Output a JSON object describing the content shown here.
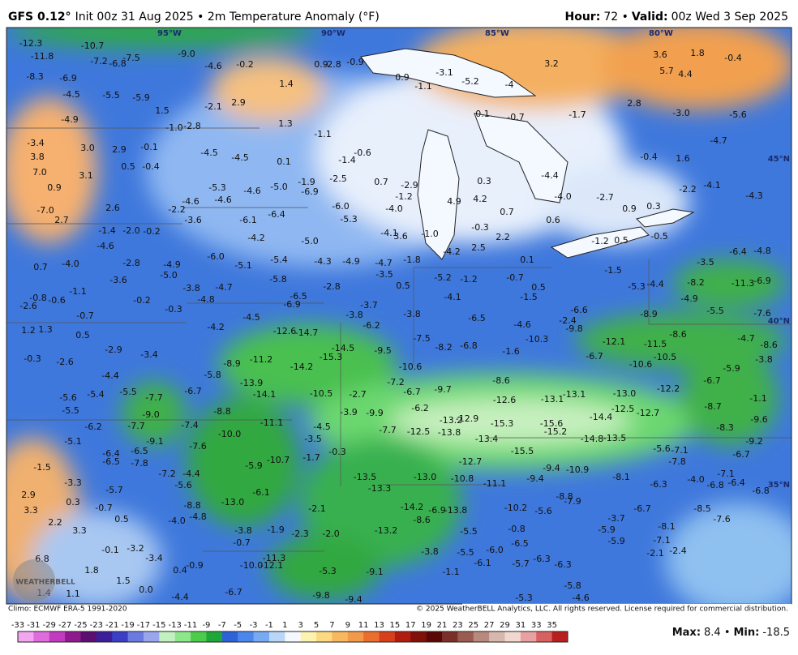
{
  "header": {
    "model": "GFS 0.12°",
    "description": "Init 00z 31 Aug 2025 • 2m Temperature Anomaly (°F)",
    "hour_label": "Hour:",
    "hour_value": "72 •",
    "valid_label": "Valid:",
    "valid_value": "00z Wed 3 Sep 2025"
  },
  "coordinate_labels": [
    "95°W",
    "90°W",
    "85°W",
    "80°W",
    "45°N",
    "40°N",
    "35°N"
  ],
  "map_labels": [
    "-12.3",
    "-11.8",
    "-10.7",
    "-7.2",
    "-6.8",
    "-7.5",
    "-9.0",
    "-8.3",
    "-6.9",
    "-4.5",
    "-5.5",
    "-5.9",
    "-4.9",
    "1.5",
    "-1.0",
    "-2.8",
    "-2.1",
    "-4.6",
    "-0.2",
    "2.9",
    "1.4",
    "1.3",
    "0.9",
    "-2.8",
    "-0.9",
    "0.9",
    "-1.1",
    "-3.1",
    "-5.2",
    "-4",
    "0.1",
    "-0.7",
    "-1.7",
    "3.2",
    "3.6",
    "1.8",
    "-0.4",
    "5.7",
    "4.4",
    "2.8",
    "-3.0",
    "-5.6",
    "-4.7",
    "1.6",
    "-0.4",
    "-3.4",
    "3.0",
    "2.9",
    "-0.1",
    "3.8",
    "7.0",
    "3.1",
    "0.5",
    "-0.4",
    "0.9",
    "-4.5",
    "-4.5",
    "0.1",
    "-1.1",
    "-1.4",
    "-0.6",
    "-5.3",
    "-4.6",
    "-4.6",
    "-5.0",
    "-1.9",
    "-6.9",
    "-2.5",
    "0.7",
    "-2.9",
    "0.3",
    "-4.4",
    "-4.0",
    "-2.7",
    "0.9",
    "0.3",
    "-2.2",
    "-4.1",
    "-4.3",
    "-7.0",
    "2.7",
    "2.6",
    "-2.2",
    "-4.6",
    "-3.6",
    "-6.1",
    "-6.4",
    "-6.0",
    "-5.3",
    "-4.0",
    "-1.2",
    "4.9",
    "4.2",
    "-0.3",
    "0.7",
    "0.6",
    "-1.0",
    "-4.1",
    "3.6",
    "-4.2",
    "2.5",
    "2.2",
    "0.1",
    "0.5",
    "-0.5",
    "-1.2",
    "-1.4",
    "-2.0",
    "-0.2",
    "-4.6",
    "-4.2",
    "-5.0",
    "0.7",
    "-4.0",
    "-2.8",
    "-4.9",
    "-5.0",
    "-6.0",
    "-5.1",
    "-5.4",
    "-5.8",
    "-4.3",
    "-4.9",
    "-4.7",
    "-3.5",
    "-1.8",
    "-5.2",
    "-1.2",
    "-0.7",
    "0.5",
    "-1.5",
    "-5.3",
    "-4.4",
    "-8.2",
    "-3.5",
    "-6.4",
    "-4.8",
    "-11.3",
    "-6.9",
    "-1.1",
    "-0.8",
    "-0.6",
    "-2.6",
    "-3.6",
    "-3.8",
    "-4.7",
    "-0.2",
    "-4.8",
    "-6.9",
    "-6.5",
    "-2.8",
    "0.5",
    "-4.1",
    "-1.5",
    "-6.6",
    "-4.9",
    "-5.5",
    "-7.6",
    "-0.7",
    "-0.3",
    "-4.5",
    "-3.8",
    "-3.7",
    "-3.8",
    "-6.5",
    "-2.4",
    "-9.8",
    "-4.6",
    "-8.9",
    "-8.6",
    "-4.7",
    "-8.6",
    "1.2",
    "1.3",
    "0.5",
    "-4.2",
    "-12.6",
    "-14.7",
    "-14.5",
    "-15.3",
    "-6.2",
    "-9.5",
    "-7.5",
    "-8.2",
    "-6.8",
    "-1.6",
    "-10.3",
    "-12.1",
    "-11.5",
    "-6.7",
    "-10.6",
    "-10.5",
    "-5.9",
    "-3.8",
    "-0.3",
    "-2.6",
    "-2.9",
    "-3.4",
    "-8.9",
    "-11.2",
    "-14.2",
    "-5.8",
    "-13.9",
    "-14.1",
    "-10.5",
    "-2.7",
    "-10.6",
    "-7.2",
    "-6.7",
    "-9.7",
    "-8.6",
    "-12.6",
    "-13.1",
    "-13.1",
    "-13.0",
    "-14.4",
    "-12.5",
    "-12.7",
    "-12.2",
    "-6.7",
    "-8.7",
    "-1.1",
    "-9.6",
    "-8.3",
    "-4.4",
    "-5.5",
    "-5.4",
    "-5.6",
    "-5.5",
    "-7.7",
    "-9.0",
    "-6.7",
    "-8.8",
    "-11.1",
    "-4.5",
    "-3.9",
    "-9.9",
    "-7.7",
    "-6.2",
    "-12.5",
    "-13.8",
    "-13.2",
    "-12.9",
    "-15.3",
    "-13.4",
    "-15.6",
    "-15.2",
    "-14.8",
    "-13.5",
    "-5.6",
    "-7.1",
    "-7.8",
    "-6.7",
    "-9.2",
    "-7.1",
    "-6.4",
    "-6.8",
    "-6.8",
    "-4.0",
    "-5.1",
    "-6.2",
    "-7.7",
    "-9.1",
    "-7.4",
    "-7.6",
    "-10.0",
    "-3.5",
    "-0.3",
    "-1.7",
    "-10.7",
    "-5.9",
    "-6.4",
    "-6.5",
    "-6.5",
    "-7.8",
    "-1.5",
    "-7.2",
    "-4.4",
    "-5.6",
    "-3.3",
    "-5.7",
    "2.9",
    "0.3",
    "-0.7",
    "3.3",
    "2.2",
    "0.5",
    "3.3",
    "-4.0",
    "-4.8",
    "-8.8",
    "-13.0",
    "-6.1",
    "-13.5",
    "-13.3",
    "-13.0",
    "-10.8",
    "-12.7",
    "-15.5",
    "-11.1",
    "-9.4",
    "-9.4",
    "-10.9",
    "-8.1",
    "-6.3",
    "-8.8",
    "-7.9",
    "-5.6",
    "-10.2",
    "-6.7",
    "-8.5",
    "-7.6",
    "-8.1",
    "-3.7",
    "-5.9",
    "-5.9",
    "-7.1",
    "-2.1",
    "-2.4",
    "-2.1",
    "-1.9",
    "-3.8",
    "-0.7",
    "-2.3",
    "-2.0",
    "-13.2",
    "-14.2",
    "-6.9",
    "-13.8",
    "-8.6",
    "-5.5",
    "-0.8",
    "-6.5",
    "-0.1",
    "-3.2",
    "-3.4",
    "6.8",
    "1.8",
    "-0.9",
    "0.4",
    "-11.3",
    "-12.1",
    "-10.0",
    "-5.3",
    "-9.1",
    "-3.8",
    "-5.5",
    "-6.0",
    "-6.1",
    "-1.1",
    "-5.7",
    "-6.3",
    "-6.3",
    "1.5",
    "1.4",
    "1.1",
    "0.0",
    "-4.4",
    "-6.7",
    "-9.8",
    "-9.4",
    "-5.3",
    "-5.8",
    "-4.6"
  ],
  "footer": {
    "climo": "Climo: ECMWF ERA-5 1991-2020",
    "copyright": "© 2025 WeatherBELL Analytics, LLC. All rights reserved. License required for commercial distribution.",
    "logo": "WEATHERBELL",
    "max_label": "Max:",
    "max_value": "8.4 •",
    "min_label": "Min:",
    "min_value": "-18.5"
  },
  "colorbar": {
    "ticks": [
      -33,
      -31,
      -29,
      -27,
      -25,
      -23,
      -21,
      -19,
      -17,
      -15,
      -13,
      -11,
      -9,
      -7,
      -5,
      -3,
      -1,
      1,
      3,
      5,
      7,
      9,
      11,
      13,
      15,
      17,
      19,
      21,
      23,
      25,
      27,
      29,
      31,
      33,
      35
    ],
    "colors": [
      "#f3a6ef",
      "#e06cdc",
      "#c13abf",
      "#8e1a8e",
      "#5c0f6e",
      "#3c1e9a",
      "#3a3fc6",
      "#6b7ae0",
      "#9aa6ec",
      "#c2f0c0",
      "#8ee68a",
      "#4ccc4a",
      "#1ea83a",
      "#2f62d8",
      "#4a86ec",
      "#78aaf2",
      "#b8d6f8",
      "#f4f8ff",
      "#fdf2b0",
      "#fcd880",
      "#f8b860",
      "#f39a4a",
      "#ec6e2e",
      "#d8401c",
      "#b01c10",
      "#801008",
      "#5a0806",
      "#7a3028",
      "#9a5c50",
      "#b88a7e",
      "#d8b8ae",
      "#f0d8d0",
      "#e8a0a0",
      "#d86060",
      "#b82020"
    ]
  }
}
